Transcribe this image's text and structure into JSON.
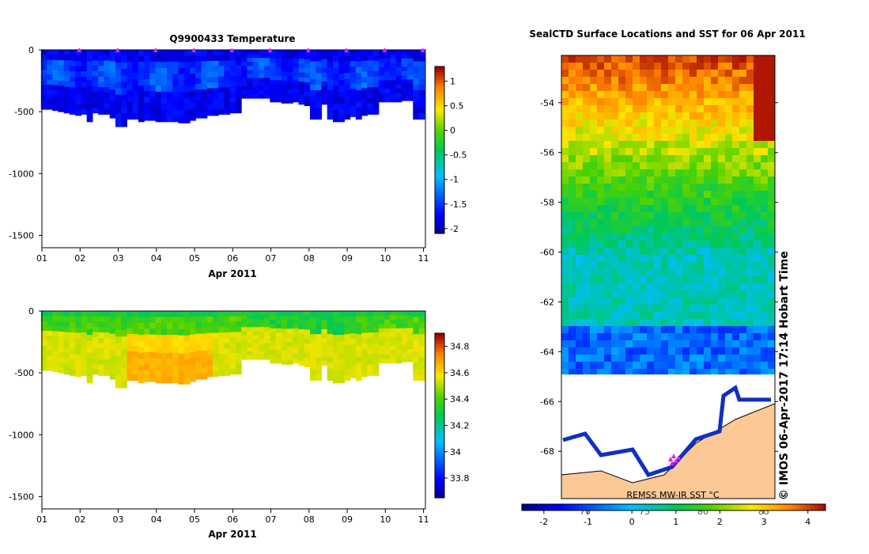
{
  "chart_data": [
    {
      "type": "heatmap",
      "title": "Q9900433  Temperature",
      "xlabel": "Apr 2011",
      "ylabel": "",
      "x_tick_labels": [
        "01",
        "02",
        "03",
        "04",
        "05",
        "06",
        "07",
        "08",
        "09",
        "10",
        "11"
      ],
      "xlim": [
        1,
        11.05
      ],
      "y_ticks": [
        0,
        -500,
        -1000,
        -1500
      ],
      "ylim": [
        -1600,
        0
      ],
      "colorbar": {
        "ticks": [
          1,
          0.5,
          0,
          -0.5,
          -1,
          -1.5,
          -2
        ],
        "range": [
          -2.1,
          1.3
        ],
        "colormap": "jet"
      },
      "profile_times": [
        1.05,
        1.2,
        1.35,
        1.5,
        1.65,
        1.8,
        1.95,
        2.1,
        2.25,
        2.4,
        2.55,
        2.7,
        2.85,
        3.0,
        3.15,
        3.3,
        3.45,
        3.6,
        3.75,
        3.9,
        4.05,
        4.2,
        4.35,
        4.5,
        4.65,
        4.8,
        4.95,
        5.1,
        5.25,
        5.4,
        5.55,
        5.7,
        5.85,
        6.0,
        6.15,
        6.3,
        6.45,
        6.6,
        6.75,
        6.9,
        7.05,
        7.2,
        7.35,
        7.5,
        7.65,
        7.8,
        7.95,
        8.1,
        8.25,
        8.4,
        8.55,
        8.7,
        8.85,
        9.0,
        9.15,
        9.3,
        9.45,
        9.6,
        9.75,
        9.9,
        10.05,
        10.2,
        10.35,
        10.5,
        10.65,
        10.8,
        10.95
      ],
      "profile_max_depth": [
        480,
        480,
        490,
        500,
        510,
        520,
        530,
        520,
        580,
        510,
        520,
        520,
        550,
        620,
        620,
        560,
        560,
        580,
        570,
        570,
        580,
        580,
        580,
        580,
        590,
        590,
        570,
        550,
        550,
        530,
        530,
        520,
        520,
        510,
        510,
        390,
        390,
        390,
        390,
        390,
        420,
        420,
        430,
        430,
        420,
        440,
        450,
        560,
        560,
        440,
        560,
        580,
        580,
        560,
        540,
        560,
        530,
        520,
        520,
        420,
        420,
        420,
        420,
        410,
        410,
        560,
        560
      ],
      "water_temperature_range": [
        -2.0,
        -1.2
      ],
      "surface_markers": [
        2,
        3,
        4,
        5,
        6,
        7,
        8,
        9,
        10,
        11
      ]
    },
    {
      "type": "heatmap",
      "title": "",
      "xlabel": "Apr 2011",
      "ylabel": "",
      "x_tick_labels": [
        "01",
        "02",
        "03",
        "04",
        "05",
        "06",
        "07",
        "08",
        "09",
        "10",
        "11"
      ],
      "xlim": [
        1,
        11.05
      ],
      "y_ticks": [
        0,
        -500,
        -1000,
        -1500
      ],
      "ylim": [
        -1600,
        0
      ],
      "colorbar": {
        "ticks": [
          34.8,
          34.6,
          34.4,
          34.2,
          34,
          33.8
        ],
        "range": [
          33.65,
          34.9
        ],
        "colormap": "jet"
      },
      "salinity_range": [
        33.9,
        34.65
      ]
    },
    {
      "type": "heatmap",
      "title": "SealCTD Surface Locations and SST for 06 Apr 2011",
      "y_tick_labels": [
        "-54",
        "-56",
        "-58",
        "-60",
        "-62",
        "-64",
        "-66",
        "-68"
      ],
      "y_ticks": [
        -54,
        -56,
        -58,
        -60,
        -62,
        -64,
        -66,
        -68
      ],
      "ylim": [
        -69.9,
        -52.1
      ],
      "x_tick_labels": [
        "70",
        "75",
        "80",
        "85"
      ],
      "x_ticks": [
        70,
        75,
        80,
        85
      ],
      "colorbar": {
        "ticks": [
          -2,
          -1,
          0,
          1,
          2,
          3,
          4
        ],
        "tick_labels": [
          "-2",
          "-1",
          "0",
          "1",
          "2",
          "3",
          "4"
        ],
        "range": [
          -2.5,
          4.4
        ],
        "colormap": "jet",
        "label": "REMSS MW-IR SST °C"
      },
      "side_caption": "© IMOS 06-Apr-2017 17:14 Hobart Time"
    }
  ],
  "colors": {
    "land": "#fcc896",
    "marker": "#e61ee6",
    "coast": "#000000",
    "frame": "#000000"
  }
}
